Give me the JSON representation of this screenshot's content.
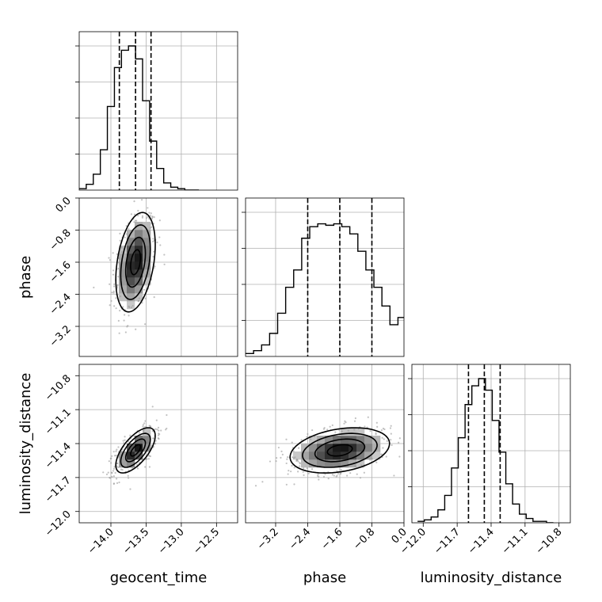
{
  "chart_data": {
    "type": "corner",
    "parameters": [
      {
        "name": "geocent_time",
        "label": "geocent_time",
        "range": [
          -14.45,
          -12.2
        ],
        "ticks": [
          -14.0,
          -13.5,
          -13.0,
          -12.5
        ],
        "tick_labels": [
          "−14.0",
          "−13.5",
          "−13.0",
          "−12.5"
        ],
        "quantiles": [
          -13.88,
          -13.65,
          -13.43
        ],
        "mean": -13.65,
        "sd": 0.14,
        "hist_bin_edges": [
          -14.45,
          -14.35,
          -14.25,
          -14.15,
          -14.05,
          -13.95,
          -13.85,
          -13.75,
          -13.65,
          -13.55,
          -13.45,
          -13.35,
          -13.25,
          -13.15,
          -13.05,
          -12.95,
          -12.85,
          -12.75
        ],
        "hist_counts": [
          0.01,
          0.04,
          0.11,
          0.28,
          0.58,
          0.85,
          0.97,
          1.0,
          0.91,
          0.62,
          0.34,
          0.15,
          0.05,
          0.02,
          0.01,
          0.0,
          0.0
        ]
      },
      {
        "name": "phase",
        "label": "phase",
        "range": [
          -3.95,
          0.0
        ],
        "ticks": [
          -3.2,
          -2.4,
          -1.6,
          -0.8,
          0.0
        ],
        "tick_labels": [
          "−3.2",
          "−2.4",
          "−1.6",
          "−0.8",
          "0.0"
        ],
        "quantiles": [
          -2.4,
          -1.6,
          -0.8
        ],
        "mean": -1.6,
        "sd": 0.62,
        "hist_bin_edges": [
          -3.95,
          -3.75,
          -3.55,
          -3.35,
          -3.15,
          -2.95,
          -2.75,
          -2.55,
          -2.35,
          -2.15,
          -1.95,
          -1.75,
          -1.55,
          -1.35,
          -1.15,
          -0.95,
          -0.75,
          -0.55,
          -0.35,
          -0.15,
          0.0
        ],
        "hist_counts": [
          0.02,
          0.04,
          0.08,
          0.16,
          0.3,
          0.48,
          0.6,
          0.82,
          0.9,
          0.92,
          0.91,
          0.92,
          0.9,
          0.85,
          0.73,
          0.6,
          0.48,
          0.35,
          0.22,
          0.27
        ]
      },
      {
        "name": "luminosity_distance",
        "label": "luminosity_distance",
        "range": [
          -12.1,
          -10.7
        ],
        "ticks": [
          -12.0,
          -11.7,
          -11.4,
          -11.1,
          -10.8
        ],
        "tick_labels": [
          "−12.0",
          "−11.7",
          "−11.4",
          "−11.1",
          "−10.8"
        ],
        "quantiles": [
          -11.6,
          -11.46,
          -11.32
        ],
        "mean": -11.46,
        "sd": 0.1,
        "hist_bin_edges": [
          -12.05,
          -11.99,
          -11.93,
          -11.87,
          -11.81,
          -11.75,
          -11.69,
          -11.63,
          -11.57,
          -11.51,
          -11.45,
          -11.39,
          -11.33,
          -11.27,
          -11.21,
          -11.15,
          -11.09,
          -11.03,
          -10.97,
          -10.91,
          -10.85
        ],
        "hist_counts": [
          0.01,
          0.02,
          0.04,
          0.09,
          0.19,
          0.38,
          0.59,
          0.82,
          0.95,
          1.0,
          0.92,
          0.71,
          0.49,
          0.27,
          0.13,
          0.06,
          0.03,
          0.01,
          0.01,
          0.0
        ]
      }
    ],
    "pairs": [
      {
        "x": "geocent_time",
        "y": "phase",
        "correlation": 0.35
      },
      {
        "x": "geocent_time",
        "y": "luminosity_distance",
        "correlation": 0.65
      },
      {
        "x": "phase",
        "y": "luminosity_distance",
        "correlation": 0.3
      }
    ],
    "grid": true,
    "colors": {
      "line": "#000000",
      "grid": "#b0b0b0",
      "scatter": "#9a9a9a",
      "background": "#ffffff"
    }
  }
}
